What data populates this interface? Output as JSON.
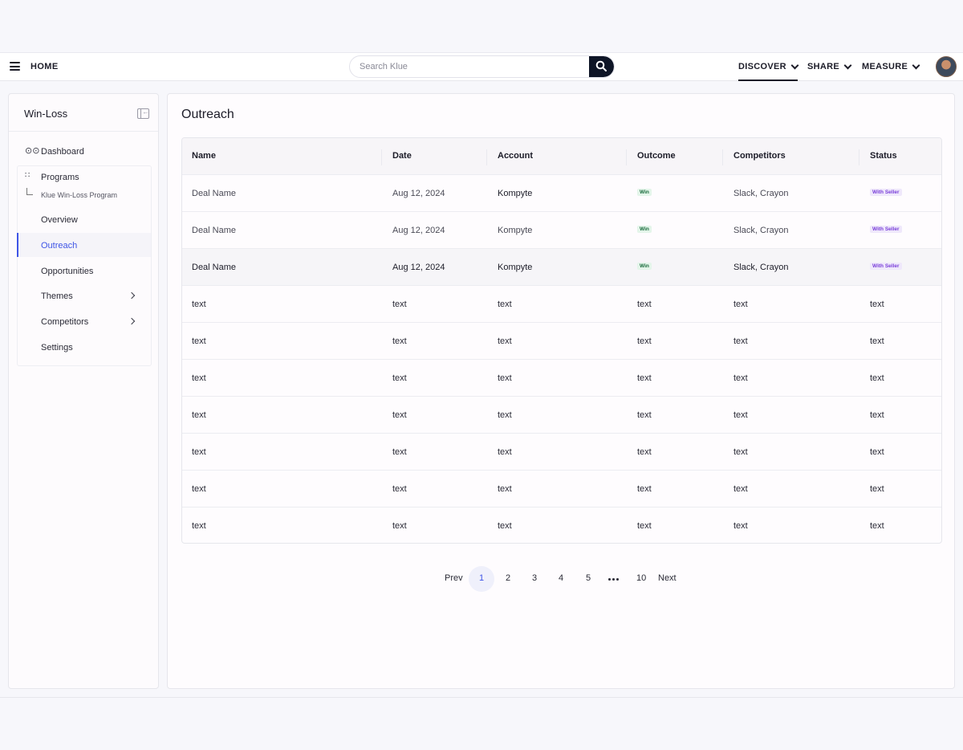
{
  "header": {
    "home_label": "HOME",
    "search_placeholder": "Search Klue",
    "nav": [
      {
        "label": "DISCOVER"
      },
      {
        "label": "SHARE"
      },
      {
        "label": "MEASURE"
      }
    ]
  },
  "sidebar": {
    "title": "Win-Loss",
    "dashboard": "Dashboard",
    "programs": "Programs",
    "program_name": "Klue Win-Loss Program",
    "items": [
      {
        "label": "Overview"
      },
      {
        "label": "Outreach"
      },
      {
        "label": "Opportunities"
      },
      {
        "label": "Themes"
      },
      {
        "label": "Competitors"
      },
      {
        "label": "Settings"
      }
    ],
    "active_item": "Outreach"
  },
  "main": {
    "title": "Outreach",
    "table": {
      "columns": [
        "Name",
        "Date",
        "Account",
        "Outcome",
        "Competitors",
        "Status"
      ],
      "rows": [
        {
          "name": "Deal Name",
          "date": "Aug 12, 2024",
          "account": "Kompyte",
          "outcome": "Win",
          "competitors": "Slack, Crayon",
          "status": "With Seller"
        },
        {
          "name": "Deal Name",
          "date": "Aug 12, 2024",
          "account": "Kompyte",
          "outcome": "Win",
          "competitors": "Slack, Crayon",
          "status": "With Seller"
        },
        {
          "name": "Deal Name",
          "date": "Aug 12, 2024",
          "account": "Kompyte",
          "outcome": "Win",
          "competitors": "Slack, Crayon",
          "status": "With Seller"
        },
        {
          "name": "text",
          "date": "text",
          "account": "text",
          "outcome": "text",
          "competitors": "text",
          "status": "text"
        },
        {
          "name": "text",
          "date": "text",
          "account": "text",
          "outcome": "text",
          "competitors": "text",
          "status": "text"
        },
        {
          "name": "text",
          "date": "text",
          "account": "text",
          "outcome": "text",
          "competitors": "text",
          "status": "text"
        },
        {
          "name": "text",
          "date": "text",
          "account": "text",
          "outcome": "text",
          "competitors": "text",
          "status": "text"
        },
        {
          "name": "text",
          "date": "text",
          "account": "text",
          "outcome": "text",
          "competitors": "text",
          "status": "text"
        },
        {
          "name": "text",
          "date": "text",
          "account": "text",
          "outcome": "text",
          "competitors": "text",
          "status": "text"
        },
        {
          "name": "text",
          "date": "text",
          "account": "text",
          "outcome": "text",
          "competitors": "text",
          "status": "text"
        }
      ]
    },
    "pagination": {
      "prev": "Prev",
      "pages": [
        "1",
        "2",
        "3",
        "4",
        "5"
      ],
      "last": "10",
      "next": "Next",
      "current": "1"
    }
  },
  "colors": {
    "accent": "#3f55e6",
    "win_badge": "#1a6b3d",
    "status_badge": "#7a3fd9",
    "search_button": "#0e1526"
  }
}
